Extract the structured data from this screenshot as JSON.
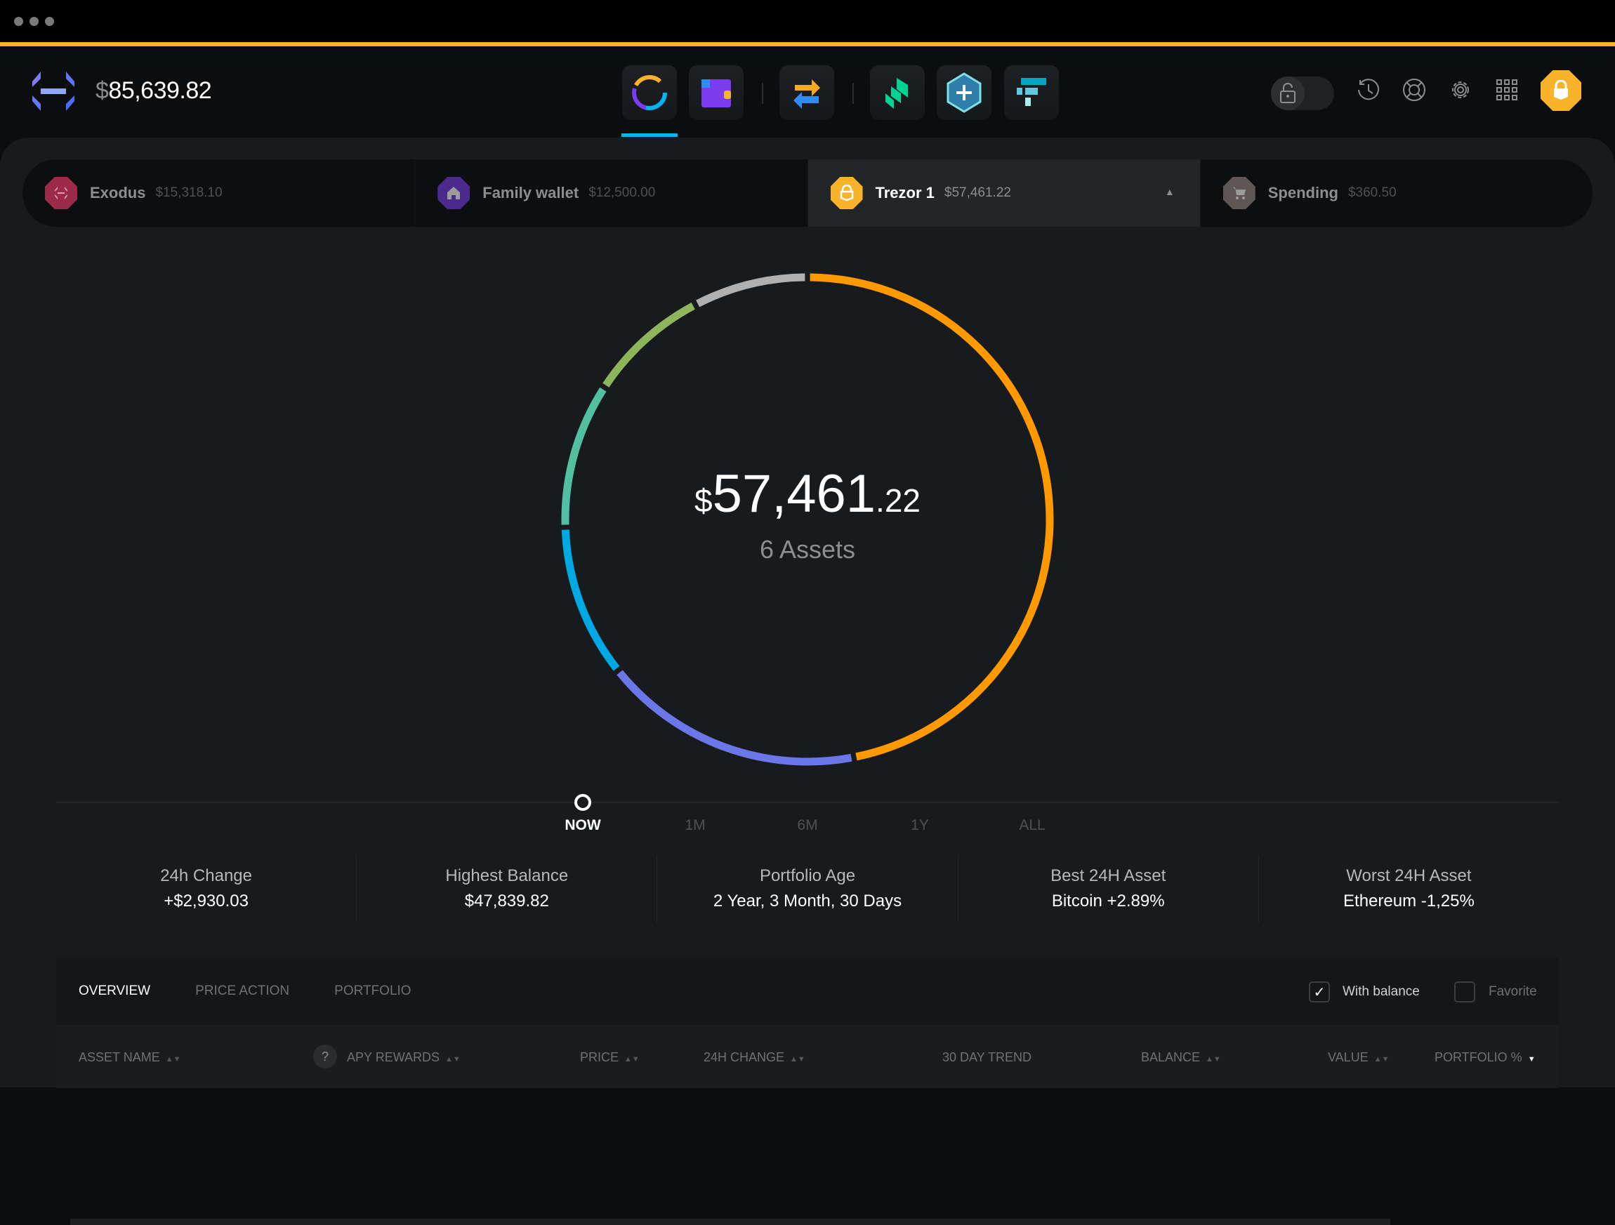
{
  "header": {
    "currency_symbol": "$",
    "total_balance": "85,639.82",
    "nav": [
      {
        "icon": "portfolio-icon",
        "active": true
      },
      {
        "icon": "wallet-icon"
      },
      {
        "icon": "exchange-icon"
      },
      {
        "icon": "compound-app-icon"
      },
      {
        "icon": "add-app-icon"
      },
      {
        "icon": "ftx-app-icon"
      }
    ],
    "right_icons": [
      "lock-toggle",
      "history-icon",
      "help-icon",
      "gear-icon",
      "apps-grid-icon",
      "trezor-lock-icon"
    ],
    "accent": "#f9b32b"
  },
  "wallets": [
    {
      "name": "Exodus",
      "balance": "$15,318.10",
      "color": "#9c2a4a",
      "icon": "exodus-icon"
    },
    {
      "name": "Family wallet",
      "balance": "$12,500.00",
      "color": "#4a2a8c",
      "icon": "home-icon"
    },
    {
      "name": "Trezor 1",
      "balance": "$57,461.22",
      "color": "#f9b32b",
      "icon": "lock-icon",
      "active": true
    },
    {
      "name": "Spending",
      "balance": "$360.50",
      "color": "#5e5755",
      "icon": "cart-icon"
    }
  ],
  "portfolio": {
    "currency_symbol": "$",
    "value_main": "57,461",
    "value_cents": ".22",
    "assets_label": "6 Assets"
  },
  "chart_data": {
    "type": "pie",
    "style": "donut",
    "values_percent": [
      46,
      17,
      10,
      9.5,
      8,
      7.5
    ],
    "colors": [
      "#ff9900",
      "#6b77e8",
      "#00a9e4",
      "#52c0a0",
      "#8db55a",
      "#b0b0b0"
    ]
  },
  "timeline": {
    "options": [
      "NOW",
      "1M",
      "6M",
      "1Y",
      "ALL"
    ],
    "selected": "NOW"
  },
  "stats": [
    {
      "label": "24h Change",
      "value": "+$2,930.03"
    },
    {
      "label": "Highest Balance",
      "value": "$47,839.82"
    },
    {
      "label": "Portfolio Age",
      "value": "2 Year, 3 Month, 30 Days"
    },
    {
      "label": "Best 24H Asset",
      "value": "Bitcoin +2.89%"
    },
    {
      "label": "Worst 24H Asset",
      "value": "Ethereum -1,25%"
    }
  ],
  "table": {
    "tabs": [
      "OVERVIEW",
      "PRICE ACTION",
      "PORTFOLIO"
    ],
    "active_tab": "OVERVIEW",
    "filters": {
      "with_balance": {
        "label": "With balance",
        "checked": true
      },
      "favorite": {
        "label": "Favorite",
        "checked": false
      }
    },
    "help": "?",
    "columns": [
      "ASSET NAME",
      "APY REWARDS",
      "PRICE",
      "24H CHANGE",
      "30 DAY TREND",
      "BALANCE",
      "VALUE",
      "PORTFOLIO %"
    ]
  }
}
